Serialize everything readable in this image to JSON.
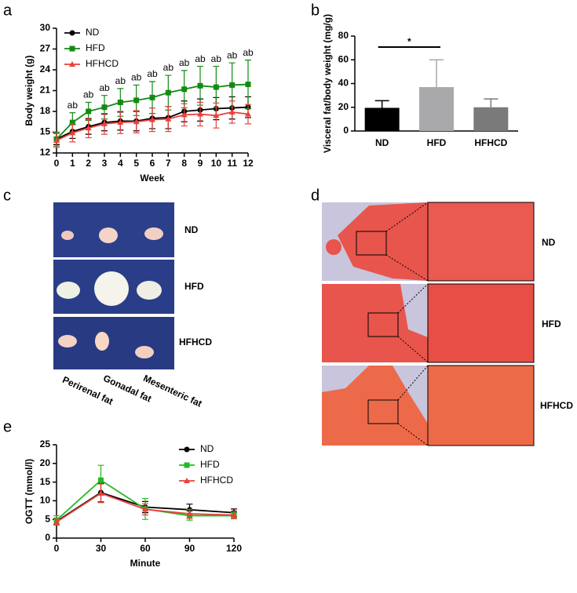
{
  "chart_data": [
    {
      "panel": "a",
      "type": "line",
      "xlabel": "Week",
      "ylabel": "Body weight (g)",
      "x": [
        0,
        1,
        2,
        3,
        4,
        5,
        6,
        7,
        8,
        9,
        10,
        11,
        12
      ],
      "xlim": [
        0,
        12
      ],
      "xticks": [
        0,
        1,
        2,
        3,
        4,
        5,
        6,
        7,
        8,
        9,
        10,
        11,
        12
      ],
      "ylim": [
        12,
        30
      ],
      "yticks": [
        12,
        15,
        18,
        21,
        24,
        27,
        30
      ],
      "legend": "upper left",
      "annotations": [
        null,
        "ab",
        "ab",
        "ab",
        "ab",
        "ab",
        "ab",
        "ab",
        "ab",
        "ab",
        "ab",
        "ab",
        "ab"
      ],
      "series": [
        {
          "name": "ND",
          "color": "#000000",
          "marker": "circle",
          "values": [
            14.0,
            15.1,
            15.8,
            16.4,
            16.6,
            16.6,
            17.0,
            17.1,
            18.0,
            18.2,
            18.4,
            18.5,
            18.6
          ],
          "errors": [
            0.8,
            1.0,
            1.1,
            1.2,
            1.3,
            1.4,
            1.5,
            1.6,
            1.5,
            1.6,
            1.6,
            1.6,
            1.5
          ]
        },
        {
          "name": "HFD",
          "color": "#138a13",
          "marker": "square",
          "values": [
            14.0,
            16.4,
            18.0,
            18.6,
            19.3,
            19.6,
            20.0,
            20.7,
            21.2,
            21.7,
            21.5,
            21.8,
            21.9
          ],
          "errors": [
            1.0,
            1.4,
            1.3,
            1.7,
            2.0,
            2.2,
            2.3,
            2.5,
            2.7,
            2.8,
            3.0,
            3.2,
            3.5
          ]
        },
        {
          "name": "HFHCD",
          "color": "#e8413c",
          "marker": "triangle",
          "values": [
            13.8,
            14.9,
            15.6,
            16.2,
            16.4,
            16.5,
            16.8,
            16.9,
            17.5,
            17.6,
            17.4,
            17.9,
            17.6
          ],
          "errors": [
            1.0,
            1.3,
            1.4,
            1.5,
            1.6,
            1.6,
            1.7,
            1.8,
            1.6,
            1.7,
            1.8,
            1.6,
            1.4
          ]
        }
      ]
    },
    {
      "panel": "b",
      "type": "bar",
      "ylabel": "Visceral fat/body weight (mg/g)",
      "categories": [
        "ND",
        "HFD",
        "HFHCD"
      ],
      "values": [
        19.5,
        37,
        20
      ],
      "errors": [
        6,
        23,
        7
      ],
      "colors": [
        "#000000",
        "#a9a9ab",
        "#7a7a7a"
      ],
      "ylim": [
        0,
        80
      ],
      "yticks": [
        0,
        20,
        40,
        60,
        80
      ],
      "significance_label": "*"
    },
    {
      "panel": "e",
      "type": "line",
      "xlabel": "Minute",
      "ylabel": "OGTT (mmol/l)",
      "x": [
        0,
        30,
        60,
        90,
        120
      ],
      "xlim": [
        0,
        120
      ],
      "xticks": [
        0,
        30,
        60,
        90,
        120
      ],
      "ylim": [
        0,
        25
      ],
      "yticks": [
        0,
        5,
        10,
        15,
        20,
        25
      ],
      "legend": "upper right",
      "series": [
        {
          "name": "ND",
          "color": "#000000",
          "marker": "circle",
          "values": [
            4.5,
            12.2,
            8.3,
            7.6,
            6.8
          ],
          "errors": [
            0.8,
            2.5,
            1.5,
            1.5,
            1.0
          ]
        },
        {
          "name": "HFD",
          "color": "#22bb22",
          "marker": "square",
          "values": [
            4.8,
            15.5,
            7.8,
            6.0,
            6.0
          ],
          "errors": [
            1.2,
            4.0,
            2.8,
            1.2,
            0.8
          ]
        },
        {
          "name": "HFHCD",
          "color": "#e8413c",
          "marker": "triangle",
          "values": [
            4.3,
            12.0,
            7.7,
            6.5,
            6.2
          ],
          "errors": [
            0.8,
            2.5,
            1.5,
            1.2,
            1.0
          ]
        }
      ]
    }
  ],
  "photo_panels": [
    {
      "panel": "c",
      "row_labels": [
        "ND",
        "HFD",
        "HFHCD"
      ],
      "column_labels": [
        "Perirenal fat",
        "Gonadal fat",
        "Mesenteric fat"
      ]
    },
    {
      "panel": "d",
      "row_labels": [
        "ND",
        "HFD",
        "HFHCD"
      ]
    }
  ]
}
